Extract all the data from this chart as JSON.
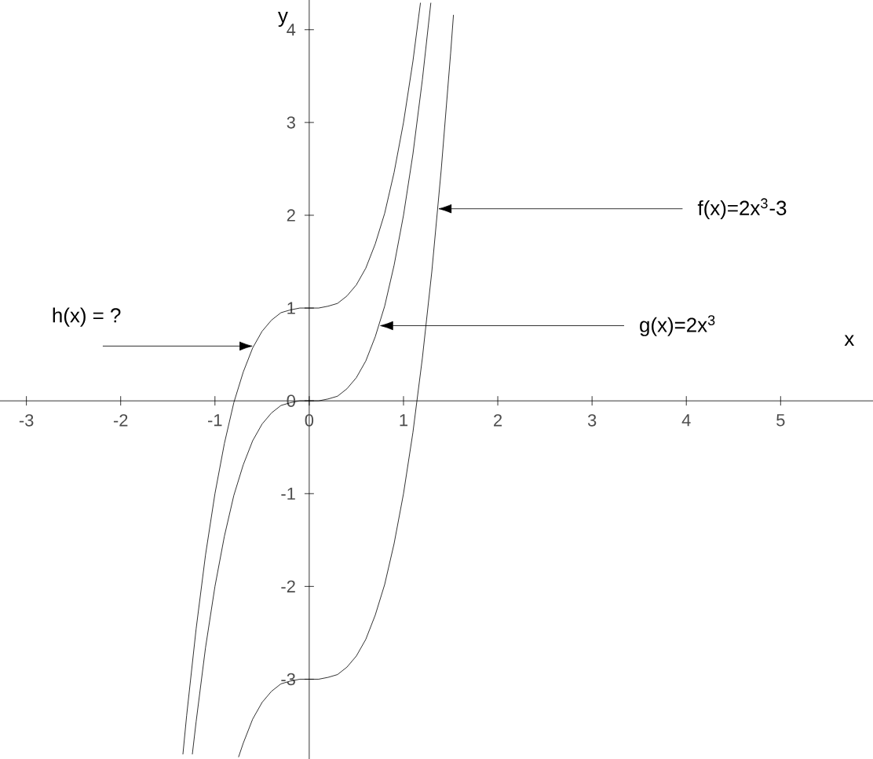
{
  "chart_data": {
    "type": "line",
    "xlabel": "x",
    "ylabel": "y",
    "xlim": [
      -3.28,
      5.98
    ],
    "ylim": [
      -3.86,
      4.32
    ],
    "xticks": [
      -3,
      -2,
      -1,
      0,
      1,
      2,
      3,
      4,
      5
    ],
    "yticks": [
      -3,
      -2,
      -1,
      0,
      1,
      2,
      3,
      4
    ],
    "grid": false,
    "marker": "none",
    "line_style": "solid",
    "series": [
      {
        "color": "#000000",
        "x": [
          -1.34,
          -1.3,
          -1.2,
          -1.1,
          -1.0,
          -0.9,
          -0.8,
          -0.7,
          -0.6,
          -0.5,
          -0.4,
          -0.3,
          -0.2,
          -0.1,
          0,
          0.1,
          0.2,
          0.3,
          0.4,
          0.5,
          0.6,
          0.7,
          0.8,
          0.9,
          1.0,
          1.1,
          1.18
        ],
        "values": [
          -3.81,
          -3.39,
          -2.46,
          -1.66,
          -1.0,
          -0.46,
          -0.02,
          0.31,
          0.57,
          0.75,
          0.87,
          0.95,
          0.98,
          1.0,
          1.0,
          1.0,
          1.02,
          1.05,
          1.13,
          1.25,
          1.43,
          1.69,
          2.02,
          2.46,
          3.0,
          3.66,
          4.29
        ]
      },
      {
        "color": "#000000",
        "x": [
          -1.24,
          -1.2,
          -1.1,
          -1.0,
          -0.9,
          -0.8,
          -0.7,
          -0.6,
          -0.5,
          -0.4,
          -0.3,
          -0.2,
          -0.1,
          0,
          0.1,
          0.2,
          0.3,
          0.4,
          0.5,
          0.6,
          0.7,
          0.8,
          0.9,
          1.0,
          1.1,
          1.2,
          1.29
        ],
        "values": [
          -3.81,
          -3.46,
          -2.66,
          -2.0,
          -1.46,
          -1.02,
          -0.69,
          -0.43,
          -0.25,
          -0.13,
          -0.05,
          -0.02,
          0.0,
          0.0,
          0.0,
          0.02,
          0.05,
          0.13,
          0.25,
          0.43,
          0.69,
          1.02,
          1.46,
          2.0,
          2.66,
          3.46,
          4.29
        ]
      },
      {
        "color": "#000000",
        "x": [
          -0.75,
          -0.7,
          -0.6,
          -0.5,
          -0.4,
          -0.3,
          -0.2,
          -0.1,
          0,
          0.1,
          0.2,
          0.3,
          0.4,
          0.5,
          0.6,
          0.7,
          0.8,
          0.9,
          1.0,
          1.1,
          1.2,
          1.3,
          1.4,
          1.5,
          1.53
        ],
        "values": [
          -3.84,
          -3.69,
          -3.43,
          -3.25,
          -3.13,
          -3.05,
          -3.02,
          -3.0,
          -3.0,
          -3.0,
          -2.98,
          -2.95,
          -2.87,
          -2.75,
          -2.57,
          -2.31,
          -1.98,
          -1.54,
          -1.0,
          -0.34,
          0.46,
          1.39,
          2.49,
          3.75,
          4.16
        ]
      }
    ],
    "annotations": [
      {
        "text": "f(x)=2x$^{3}$-3",
        "x": 1.36,
        "y": 2.07
      },
      {
        "text": "g(x)=2x$^{3}$",
        "x": 0.74,
        "y": 0.81
      },
      {
        "text": "h(x) = ?",
        "x": -0.59,
        "y": 0.59
      }
    ]
  }
}
